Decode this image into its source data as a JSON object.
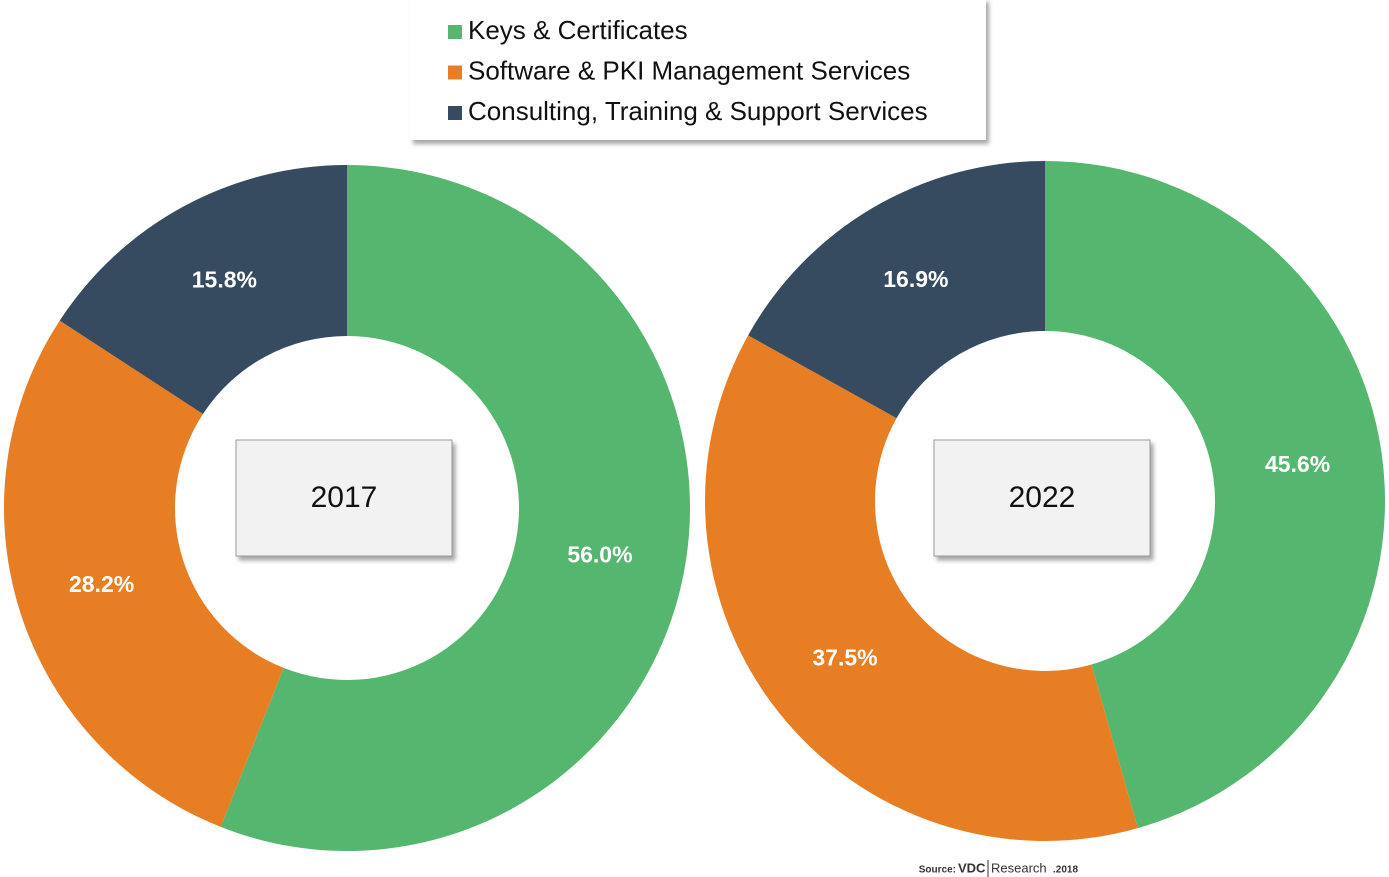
{
  "chart_data": {
    "type": "donut",
    "categories": [
      "Keys & Certificates",
      "Software & PKI Management Services",
      "Consulting, Training & Support Services"
    ],
    "colors": [
      "#55b66f",
      "#e87e23",
      "#364b60"
    ],
    "series": [
      {
        "name": "2017",
        "values": [
          56.0,
          28.2,
          15.8
        ],
        "value_labels": [
          "56.0%",
          "28.2%",
          "15.8%"
        ]
      },
      {
        "name": "2022",
        "values": [
          45.6,
          37.5,
          16.9
        ],
        "value_labels": [
          "45.6%",
          "37.5%",
          "16.9%"
        ]
      }
    ],
    "source": {
      "prefix": "Source:",
      "brand_left": "VDC",
      "brand_right": "Research",
      "year": ".2018"
    }
  }
}
